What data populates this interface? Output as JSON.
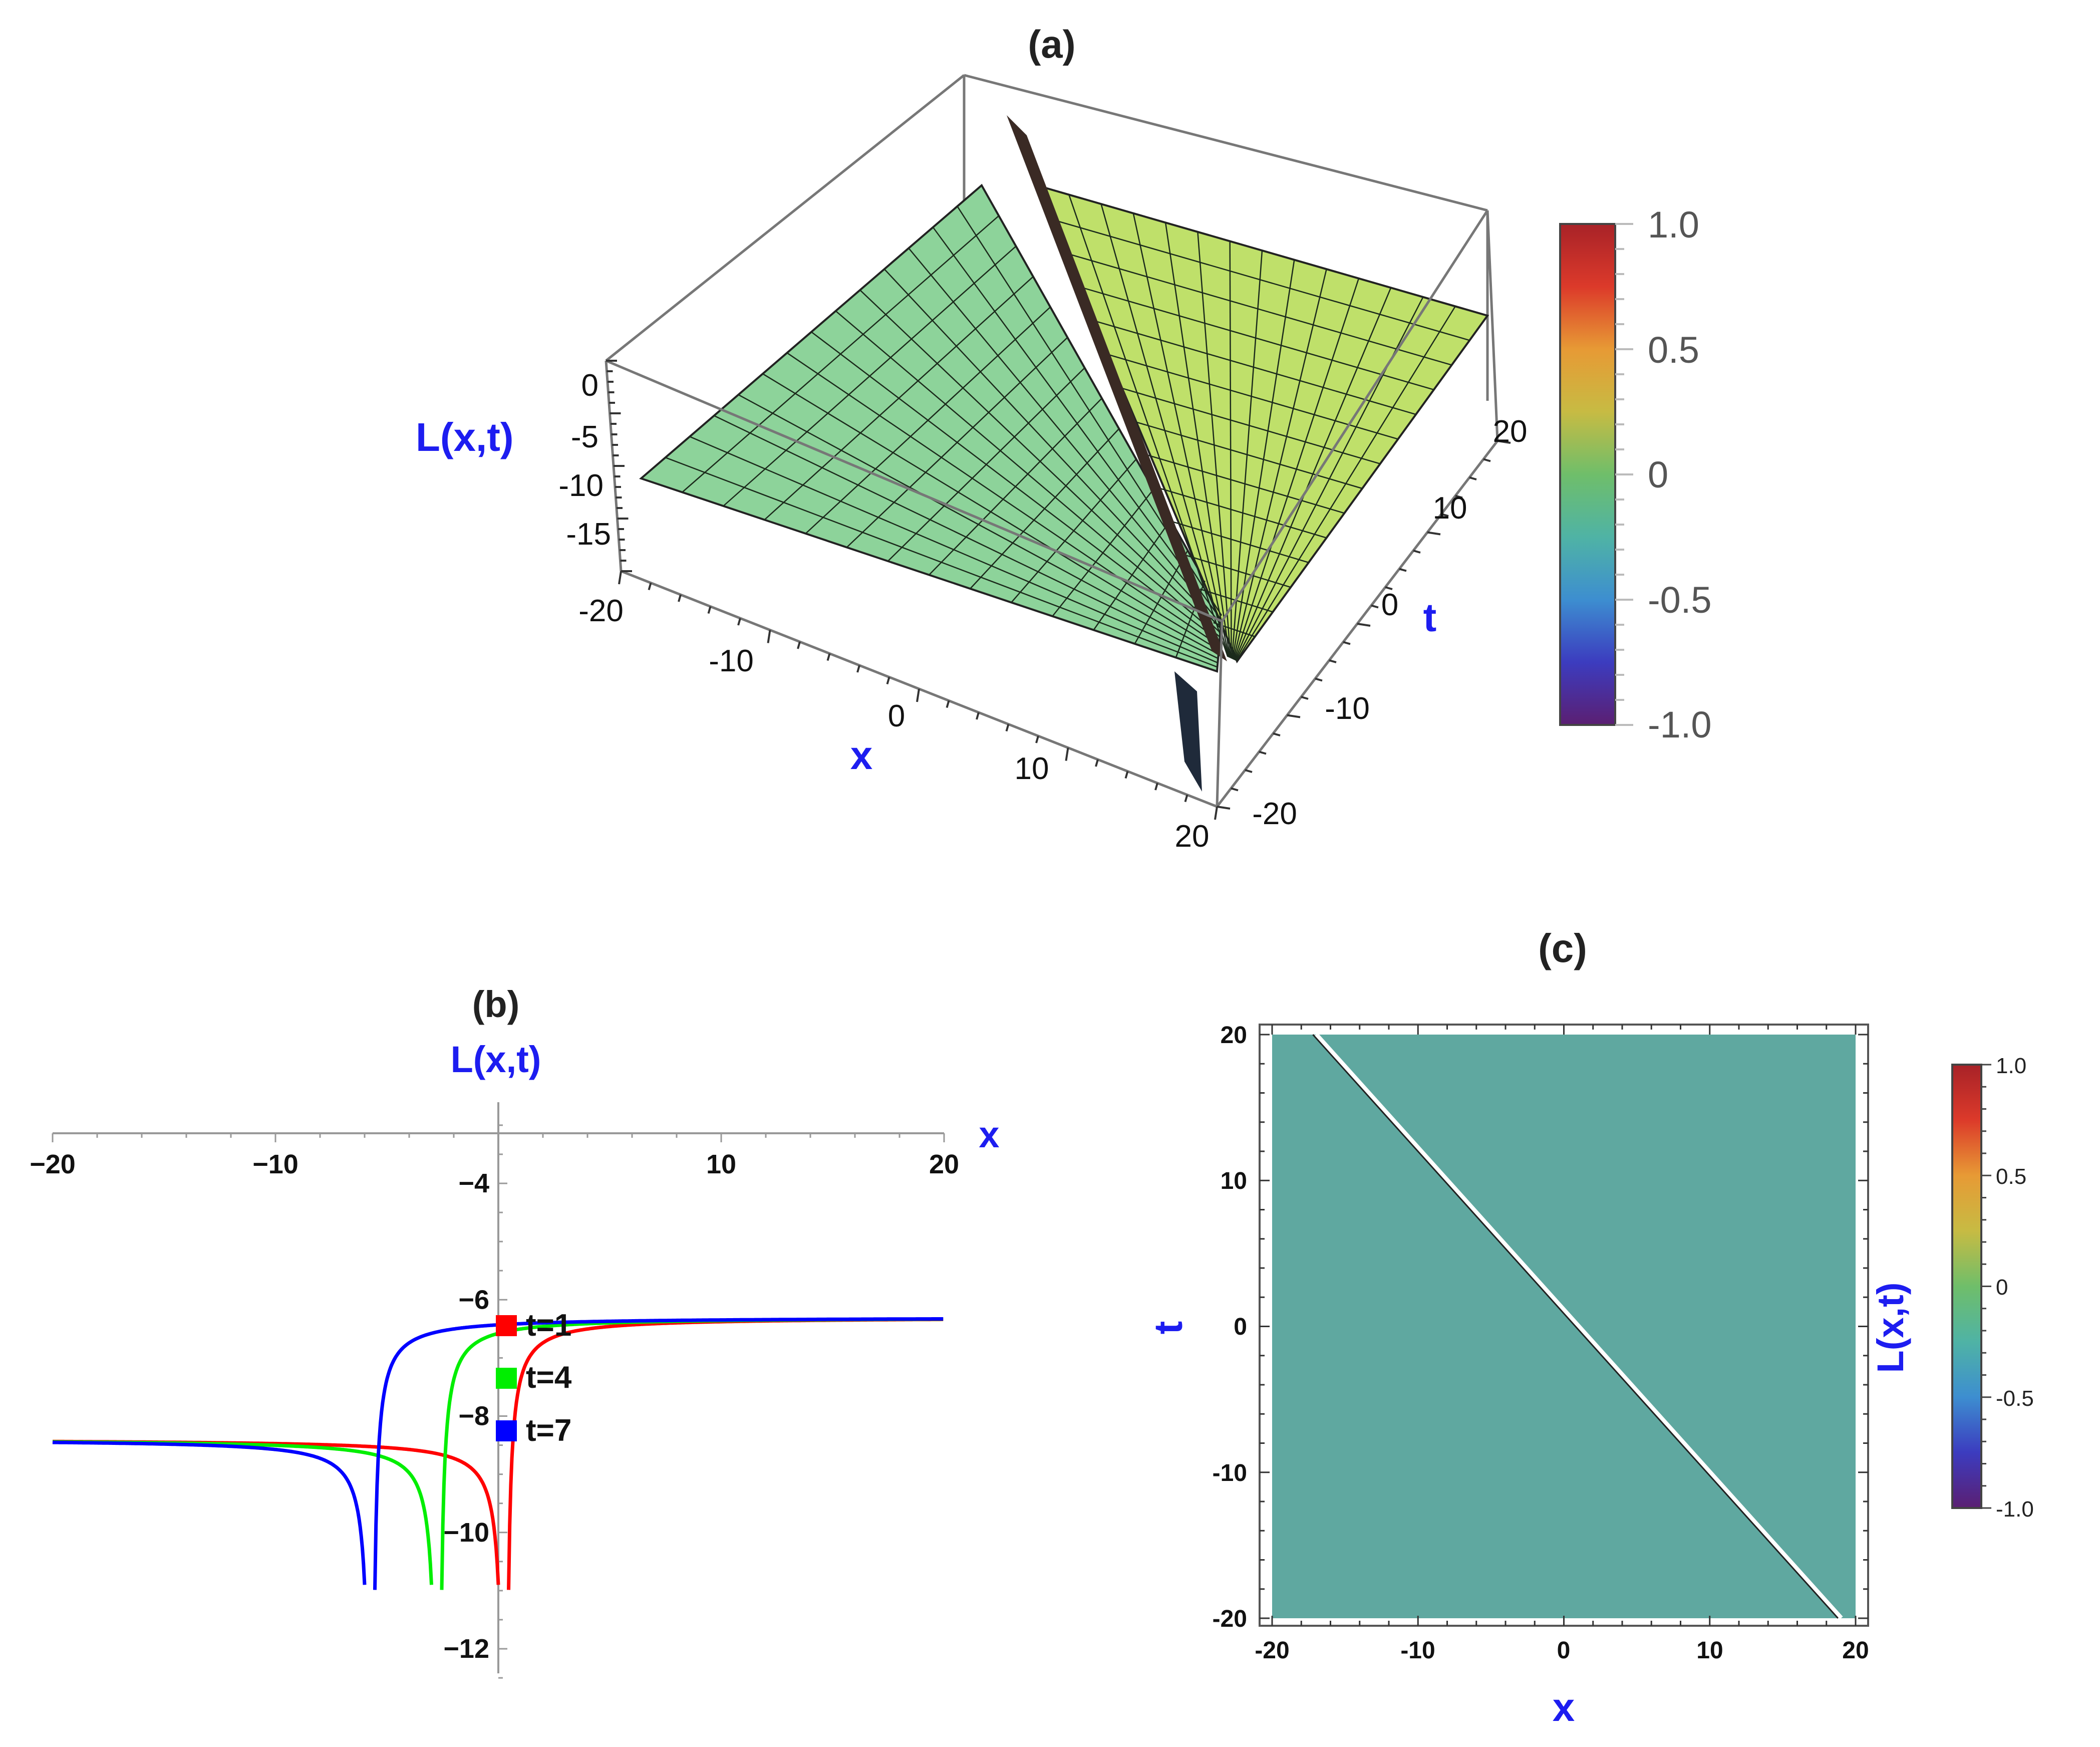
{
  "chart_data": [
    {
      "panel": "(a)",
      "type": "surface3d",
      "title": "(a)",
      "xlabel": "x",
      "ylabel": "t",
      "zlabel": "L(x,t)",
      "xlim": [
        -20,
        20
      ],
      "ylim": [
        -20,
        20
      ],
      "zlim": [
        -20,
        0
      ],
      "x_ticks": [
        "-20",
        "-10",
        "0",
        "10",
        "20"
      ],
      "y_ticks": [
        "-20",
        "-10",
        "0",
        "10",
        "20"
      ],
      "z_ticks": [
        "0",
        "-5",
        "-10",
        "-15"
      ],
      "plane_levels": {
        "left_of_front": -8.4,
        "right_of_front": -6.3
      },
      "front_line": "x + t ≈ 0",
      "colorbar": {
        "min": -1.0,
        "max": 1.0,
        "ticks": [
          "1.0",
          "0.5",
          "0",
          "-0.5",
          "-1.0"
        ],
        "colors": [
          "#5b1f72",
          "#3c3cbf",
          "#3d8ed0",
          "#4fb3a5",
          "#6fbe6a",
          "#c7bb43",
          "#e79a35",
          "#dc3a2a",
          "#a82228"
        ]
      },
      "surface_colors": {
        "left": "#8dd39a",
        "right": "#bfe06a",
        "front": "#3a2a24"
      }
    },
    {
      "panel": "(b)",
      "type": "line",
      "title": "(b)",
      "xlabel": "x",
      "ylabel": "L(x,t)",
      "xlim": [
        -20,
        20
      ],
      "ylim": [
        -12.5,
        -2.5
      ],
      "x_ticks": [
        -20,
        -10,
        10,
        20
      ],
      "y_ticks": [
        -4,
        -6,
        -8,
        -10,
        -12
      ],
      "asymptote_upper": -6.3,
      "asymptote_lower": -8.4,
      "series": [
        {
          "name": "t=1",
          "color": "#ff0000",
          "pole": 0.3
        },
        {
          "name": "t=4",
          "color": "#00ee00",
          "pole": -2.7
        },
        {
          "name": "t=7",
          "color": "#0000ff",
          "pole": -5.7
        }
      ]
    },
    {
      "panel": "(c)",
      "type": "heatmap",
      "title": "(c)",
      "xlabel": "x",
      "ylabel": "t",
      "colorbar_label": "L(x,t)",
      "xlim": [
        -20,
        20
      ],
      "ylim": [
        -20,
        20
      ],
      "x_ticks": [
        "-20",
        "-10",
        "0",
        "10",
        "20"
      ],
      "y_ticks": [
        "20",
        "10",
        "0",
        "-10",
        "-20"
      ],
      "fill_color": "#5fa8a0",
      "front_line": [
        [
          -17,
          20
        ],
        [
          19,
          -20
        ]
      ],
      "colorbar": {
        "min": -1.0,
        "max": 1.0,
        "ticks": [
          "1.0",
          "0.5",
          "0",
          "-0.5",
          "-1.0"
        ],
        "colors": [
          "#5b1f72",
          "#3c3cbf",
          "#3d8ed0",
          "#4fb3a5",
          "#6fbe6a",
          "#c7bb43",
          "#e79a35",
          "#dc3a2a",
          "#a82228"
        ]
      }
    }
  ]
}
